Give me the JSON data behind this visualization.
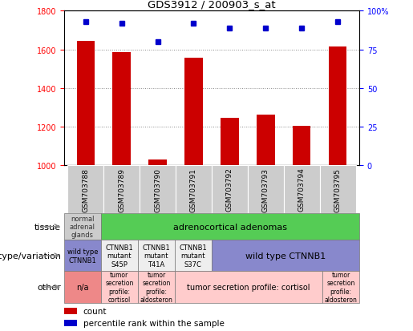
{
  "title": "GDS3912 / 200903_s_at",
  "samples": [
    "GSM703788",
    "GSM703789",
    "GSM703790",
    "GSM703791",
    "GSM703792",
    "GSM703793",
    "GSM703794",
    "GSM703795"
  ],
  "counts": [
    1645,
    1585,
    1030,
    1555,
    1245,
    1260,
    1205,
    1615
  ],
  "percentile_ranks": [
    93,
    92,
    80,
    92,
    89,
    89,
    89,
    93
  ],
  "ylim_left": [
    1000,
    1800
  ],
  "ylim_right": [
    0,
    100
  ],
  "yticks_left": [
    1000,
    1200,
    1400,
    1600,
    1800
  ],
  "yticks_right": [
    0,
    25,
    50,
    75,
    100
  ],
  "ytick_right_labels": [
    "0",
    "25",
    "50",
    "75",
    "100%"
  ],
  "bar_color": "#cc0000",
  "dot_color": "#0000cc",
  "dot_size": 5,
  "bar_width": 0.5,
  "grid_color": "#888888",
  "grid_style": "dotted",
  "sample_box_color": "#cccccc",
  "tissue_row": {
    "cells": [
      {
        "text": "normal\nadrenal\nglands",
        "span": 1,
        "color": "#cccccc",
        "textcolor": "#333333",
        "fontsize": 6
      },
      {
        "text": "adrenocortical adenomas",
        "span": 7,
        "color": "#55cc55",
        "textcolor": "#000000",
        "fontsize": 8
      }
    ]
  },
  "genotype_row": {
    "cells": [
      {
        "text": "wild type\nCTNNB1",
        "span": 1,
        "color": "#8888cc",
        "textcolor": "#000000",
        "fontsize": 6
      },
      {
        "text": "CTNNB1\nmutant\nS45P",
        "span": 1,
        "color": "#eeeeee",
        "textcolor": "#000000",
        "fontsize": 6
      },
      {
        "text": "CTNNB1\nmutant\nT41A",
        "span": 1,
        "color": "#eeeeee",
        "textcolor": "#000000",
        "fontsize": 6
      },
      {
        "text": "CTNNB1\nmutant\nS37C",
        "span": 1,
        "color": "#eeeeee",
        "textcolor": "#000000",
        "fontsize": 6
      },
      {
        "text": "wild type CTNNB1",
        "span": 4,
        "color": "#8888cc",
        "textcolor": "#000000",
        "fontsize": 8
      }
    ]
  },
  "other_row": {
    "cells": [
      {
        "text": "n/a",
        "span": 1,
        "color": "#ee8888",
        "textcolor": "#000000",
        "fontsize": 7
      },
      {
        "text": "tumor\nsecretion\nprofile:\ncortisol",
        "span": 1,
        "color": "#ffcccc",
        "textcolor": "#000000",
        "fontsize": 5.5
      },
      {
        "text": "tumor\nsecretion\nprofile:\naldosteron",
        "span": 1,
        "color": "#ffcccc",
        "textcolor": "#000000",
        "fontsize": 5.5
      },
      {
        "text": "tumor secretion profile: cortisol",
        "span": 4,
        "color": "#ffcccc",
        "textcolor": "#000000",
        "fontsize": 7
      },
      {
        "text": "tumor\nsecretion\nprofile:\naldosteron",
        "span": 1,
        "color": "#ffcccc",
        "textcolor": "#000000",
        "fontsize": 5.5
      }
    ]
  },
  "row_labels": [
    "tissue",
    "genotype/variation",
    "other"
  ],
  "row_label_fontsize": 8,
  "arrow_color": "#888888",
  "legend_bar_color": "#cc0000",
  "legend_dot_color": "#0000cc",
  "legend_bar_label": "count",
  "legend_dot_label": "percentile rank within the sample",
  "legend_fontsize": 7.5
}
